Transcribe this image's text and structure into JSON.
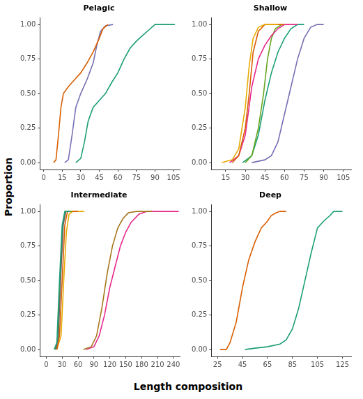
{
  "xlabel": "Length composition",
  "ylabel": "Proportion",
  "chart_data": [
    {
      "type": "line",
      "title": "Pelagic",
      "grid": false,
      "xlim": [
        -3,
        110
      ],
      "xticks": [
        0,
        15,
        30,
        45,
        60,
        75,
        90,
        105
      ],
      "ylim": [
        -0.05,
        1.05
      ],
      "yticks": [
        {
          "value": 0,
          "label": "0.00"
        },
        {
          "value": 0.25,
          "label": "0.25"
        },
        {
          "value": 0.5,
          "label": "0.50"
        },
        {
          "value": 0.75,
          "label": "0.75"
        },
        {
          "value": 1,
          "label": "1.00"
        }
      ],
      "series": [
        {
          "color": "#D95F02",
          "x": [
            8,
            10,
            12,
            14,
            16,
            20,
            25,
            30,
            35,
            40,
            45,
            48,
            52
          ],
          "values": [
            0,
            0.02,
            0.2,
            0.4,
            0.5,
            0.55,
            0.6,
            0.65,
            0.72,
            0.8,
            0.9,
            0.97,
            1.0
          ]
        },
        {
          "color": "#7570B3",
          "x": [
            17,
            20,
            23,
            26,
            30,
            35,
            40,
            43,
            46,
            50,
            56
          ],
          "values": [
            0,
            0.02,
            0.2,
            0.4,
            0.5,
            0.6,
            0.72,
            0.85,
            0.95,
            0.99,
            1.0
          ]
        },
        {
          "color": "#1B9E77",
          "x": [
            26,
            30,
            33,
            36,
            40,
            45,
            50,
            55,
            60,
            65,
            70,
            75,
            80,
            85,
            90,
            106
          ],
          "values": [
            0,
            0.03,
            0.15,
            0.3,
            0.4,
            0.45,
            0.5,
            0.58,
            0.65,
            0.75,
            0.83,
            0.88,
            0.92,
            0.96,
            1.0,
            1.0
          ]
        }
      ]
    },
    {
      "type": "line",
      "title": "Shallow",
      "grid": false,
      "xlim": [
        4,
        111
      ],
      "xticks": [
        15,
        30,
        45,
        60,
        75,
        90,
        105
      ],
      "ylim": [
        -0.05,
        1.05
      ],
      "yticks": [
        {
          "value": 0,
          "label": "0.00"
        },
        {
          "value": 0.25,
          "label": "0.25"
        },
        {
          "value": 0.5,
          "label": "0.50"
        },
        {
          "value": 0.75,
          "label": "0.75"
        },
        {
          "value": 1,
          "label": "1.00"
        }
      ],
      "series": [
        {
          "color": "#E6AB02",
          "x": [
            12,
            20,
            25,
            30,
            33,
            36,
            40,
            45,
            55
          ],
          "values": [
            0,
            0.02,
            0.1,
            0.4,
            0.7,
            0.9,
            0.98,
            1.0,
            1.0
          ]
        },
        {
          "color": "#D95F02",
          "x": [
            20,
            25,
            30,
            33,
            36,
            40,
            45,
            60
          ],
          "values": [
            0,
            0.05,
            0.25,
            0.5,
            0.8,
            0.95,
            1.0,
            1.0
          ]
        },
        {
          "color": "#E7298A",
          "x": [
            18,
            25,
            30,
            35,
            40,
            45,
            50,
            55,
            60,
            70
          ],
          "values": [
            0,
            0.05,
            0.2,
            0.55,
            0.75,
            0.85,
            0.92,
            0.97,
            1.0,
            1.0
          ]
        },
        {
          "color": "#66A61E",
          "x": [
            30,
            35,
            40,
            44,
            47,
            50,
            53,
            58
          ],
          "values": [
            0,
            0.05,
            0.25,
            0.5,
            0.75,
            0.9,
            0.97,
            1.0
          ]
        },
        {
          "color": "#1B9E77",
          "x": [
            28,
            35,
            40,
            45,
            50,
            55,
            60,
            65,
            70,
            75
          ],
          "values": [
            0,
            0.05,
            0.2,
            0.45,
            0.65,
            0.8,
            0.9,
            0.97,
            1.0,
            1.0
          ]
        },
        {
          "color": "#7570B3",
          "x": [
            35,
            45,
            50,
            55,
            60,
            65,
            70,
            75,
            80,
            85,
            90
          ],
          "values": [
            0,
            0.02,
            0.05,
            0.15,
            0.35,
            0.55,
            0.75,
            0.9,
            0.98,
            1.0,
            1.0
          ]
        }
      ]
    },
    {
      "type": "line",
      "title": "Intermediate",
      "grid": false,
      "xlim": [
        -12,
        252
      ],
      "xticks": [
        0,
        30,
        60,
        90,
        120,
        150,
        180,
        210,
        240
      ],
      "ylim": [
        -0.05,
        1.05
      ],
      "yticks": [
        {
          "value": 0,
          "label": "0.00"
        },
        {
          "value": 0.25,
          "label": "0.25"
        },
        {
          "value": 0.5,
          "label": "0.50"
        },
        {
          "value": 0.75,
          "label": "0.75"
        },
        {
          "value": 1,
          "label": "1.00"
        }
      ],
      "series": [
        {
          "color": "#1B9E77",
          "x": [
            15,
            20,
            25,
            30,
            35,
            45
          ],
          "values": [
            0,
            0.05,
            0.5,
            0.9,
            1.0,
            1.0
          ]
        },
        {
          "color": "#666666",
          "x": [
            18,
            23,
            27,
            32,
            37,
            45
          ],
          "values": [
            0,
            0.1,
            0.5,
            0.9,
            1.0,
            1.0
          ]
        },
        {
          "color": "#66A61E",
          "x": [
            17,
            22,
            26,
            31,
            36,
            48
          ],
          "values": [
            0,
            0.08,
            0.5,
            0.9,
            1.0,
            1.0
          ]
        },
        {
          "color": "#D95F02",
          "x": [
            20,
            25,
            30,
            35,
            40,
            60
          ],
          "values": [
            0,
            0.1,
            0.5,
            0.9,
            1.0,
            1.0
          ]
        },
        {
          "color": "#E6AB02",
          "x": [
            20,
            28,
            33,
            38,
            43,
            50,
            72
          ],
          "values": [
            0,
            0.1,
            0.5,
            0.85,
            0.98,
            1.0,
            1.0
          ]
        },
        {
          "color": "#A6761D",
          "x": [
            70,
            85,
            95,
            105,
            115,
            125,
            135,
            145,
            155,
            170,
            200
          ],
          "values": [
            0,
            0.02,
            0.1,
            0.3,
            0.55,
            0.75,
            0.88,
            0.95,
            0.99,
            1.0,
            1.0
          ]
        },
        {
          "color": "#E7298A",
          "x": [
            75,
            90,
            100,
            110,
            120,
            130,
            140,
            150,
            160,
            175,
            190,
            250
          ],
          "values": [
            0,
            0.02,
            0.1,
            0.25,
            0.45,
            0.6,
            0.75,
            0.85,
            0.92,
            0.98,
            1.0,
            1.0
          ]
        }
      ]
    },
    {
      "type": "line",
      "title": "Deep",
      "grid": false,
      "xlim": [
        20,
        132
      ],
      "xticks": [
        25,
        45,
        65,
        85,
        105,
        125
      ],
      "ylim": [
        -0.05,
        1.05
      ],
      "yticks": [
        {
          "value": 0,
          "label": "0.00"
        },
        {
          "value": 0.25,
          "label": "0.25"
        },
        {
          "value": 0.5,
          "label": "0.50"
        },
        {
          "value": 0.75,
          "label": "0.75"
        },
        {
          "value": 1,
          "label": "1.00"
        }
      ],
      "series": [
        {
          "color": "#D95F02",
          "x": [
            27,
            32,
            35,
            40,
            45,
            50,
            55,
            60,
            65,
            68,
            72,
            75,
            80
          ],
          "values": [
            0,
            0,
            0.05,
            0.2,
            0.45,
            0.65,
            0.78,
            0.88,
            0.93,
            0.97,
            0.99,
            1.0,
            1.0
          ]
        },
        {
          "color": "#1B9E77",
          "x": [
            47,
            55,
            65,
            75,
            80,
            85,
            90,
            95,
            100,
            105,
            110,
            115,
            118,
            125
          ],
          "values": [
            0,
            0.01,
            0.02,
            0.04,
            0.07,
            0.15,
            0.3,
            0.5,
            0.7,
            0.88,
            0.93,
            0.97,
            1.0,
            1.0
          ]
        }
      ]
    }
  ]
}
